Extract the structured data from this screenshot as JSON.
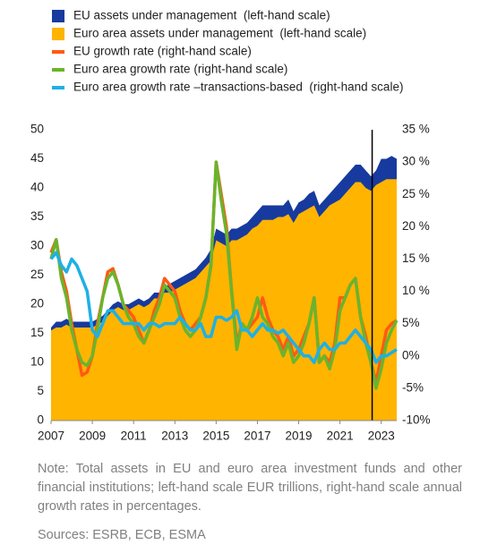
{
  "chart_data": {
    "type": "combo",
    "x": [
      2007,
      2007.25,
      2007.5,
      2007.75,
      2008,
      2008.25,
      2008.5,
      2008.75,
      2009,
      2009.25,
      2009.5,
      2009.75,
      2010,
      2010.25,
      2010.5,
      2010.75,
      2011,
      2011.25,
      2011.5,
      2011.75,
      2012,
      2012.25,
      2012.5,
      2012.75,
      2013,
      2013.25,
      2013.5,
      2013.75,
      2014,
      2014.25,
      2014.5,
      2014.75,
      2015,
      2015.25,
      2015.5,
      2015.75,
      2016,
      2016.25,
      2016.5,
      2016.75,
      2017,
      2017.25,
      2017.5,
      2017.75,
      2018,
      2018.25,
      2018.5,
      2018.75,
      2019,
      2019.25,
      2019.5,
      2019.75,
      2020,
      2020.25,
      2020.5,
      2020.75,
      2021,
      2021.25,
      2021.5,
      2021.75,
      2022,
      2022.25,
      2022.5,
      2022.75,
      2023,
      2023.25,
      2023.5,
      2023.75
    ],
    "series": [
      {
        "name": "EU assets under management  (left-hand scale)",
        "type": "area",
        "color": "#173a9e",
        "values": [
          16,
          17,
          17,
          17.5,
          17,
          17,
          17,
          17,
          17,
          17.5,
          18,
          19,
          20,
          20.5,
          20,
          20,
          20.5,
          21,
          20.5,
          21,
          22,
          22,
          23,
          23.5,
          24,
          24.5,
          25,
          25.5,
          26,
          27,
          28,
          29.5,
          33,
          32.5,
          32,
          33,
          33,
          33.5,
          34,
          35,
          36,
          37,
          37,
          37,
          37,
          37,
          38,
          36,
          37.5,
          38,
          39,
          39.5,
          37,
          38,
          39,
          40,
          41,
          42,
          43,
          44,
          44,
          43,
          42,
          43,
          45,
          45,
          45.5,
          45
        ]
      },
      {
        "name": "Euro area assets under management  (left-hand scale)",
        "type": "area",
        "color": "#ffb400",
        "values": [
          15.5,
          16,
          16,
          16.5,
          16,
          16,
          16,
          16,
          16,
          16.5,
          17,
          18,
          19,
          19.5,
          19,
          19,
          19.5,
          20,
          19.5,
          20,
          21,
          21,
          22,
          22,
          22.5,
          23,
          23.5,
          24,
          24.5,
          25.5,
          26.5,
          27.5,
          31,
          30.5,
          30,
          31,
          31,
          31.5,
          32,
          33,
          33.5,
          34.5,
          34.5,
          34.5,
          35,
          35,
          35.5,
          34,
          35.5,
          36,
          36.5,
          37,
          35,
          36,
          37,
          37.5,
          38,
          39,
          40,
          41,
          41,
          40,
          39.5,
          40.5,
          41,
          41.5,
          41.5,
          41.5
        ]
      },
      {
        "name": "EU growth rate (right-hand scale)",
        "type": "line",
        "axis": "y2",
        "color": "#ff5a14",
        "values": [
          16,
          18,
          13,
          10,
          5,
          1,
          -3,
          -2.5,
          0,
          5,
          9,
          13,
          13.5,
          11,
          8,
          7,
          6,
          4,
          2,
          4,
          7,
          9,
          12,
          11,
          10,
          7,
          5,
          4,
          5,
          6,
          9,
          14,
          30,
          25,
          20,
          10,
          2,
          5,
          4,
          5,
          6,
          9,
          6,
          4,
          3,
          1,
          3,
          0,
          1,
          3,
          5,
          9,
          -1,
          0,
          -1,
          2,
          9,
          9,
          11,
          12,
          6,
          3,
          -1,
          -4,
          0,
          4,
          5,
          5.5
        ]
      },
      {
        "name": "Euro area growth rate (right-hand scale)",
        "type": "line",
        "axis": "y2",
        "color": "#6ab42d",
        "values": [
          15,
          18,
          12,
          9,
          4,
          1,
          -1,
          -1.5,
          0,
          4,
          9,
          12,
          13,
          11,
          8,
          6,
          5,
          3,
          2,
          4,
          6,
          8,
          11,
          10,
          9,
          6,
          4,
          3,
          4,
          6,
          9,
          14,
          30,
          24,
          19,
          10,
          1,
          5,
          4,
          6,
          9,
          6,
          5,
          3,
          2,
          0,
          2,
          -1,
          0,
          2,
          5,
          9,
          -1,
          0,
          -2,
          1,
          7,
          9,
          11,
          12,
          6,
          2,
          -1,
          -5,
          -2,
          2,
          4,
          5.5
        ]
      },
      {
        "name": "Euro area growth rate –transactions-based  (right-hand scale)",
        "type": "line",
        "axis": "y2",
        "color": "#1eb0e6",
        "values": [
          15,
          16,
          14,
          13,
          15,
          14,
          12,
          10,
          4,
          3,
          5,
          7,
          7,
          6,
          5,
          5,
          5,
          5,
          4,
          5,
          5,
          4.5,
          5,
          5,
          5,
          6,
          5,
          4,
          4,
          5,
          3,
          3,
          6,
          6,
          5.5,
          6,
          7,
          4,
          4,
          3,
          4,
          5,
          4,
          4,
          3.5,
          4,
          3,
          2,
          1,
          0,
          0,
          -1,
          1,
          2,
          1,
          1,
          2,
          2,
          3,
          4,
          3,
          2,
          1,
          -1,
          0,
          0,
          0.5,
          1
        ]
      }
    ],
    "xlim": [
      2007,
      2023.75
    ],
    "xticks": [
      2007,
      2009,
      2011,
      2013,
      2015,
      2017,
      2019,
      2021,
      2023
    ],
    "ylim": [
      0,
      50
    ],
    "yticks": [
      0,
      5,
      10,
      15,
      20,
      25,
      30,
      35,
      40,
      45,
      50
    ],
    "y2lim": [
      -10,
      35
    ],
    "y2ticks": [
      {
        "value": -10,
        "label": "-10%"
      },
      {
        "value": -5,
        "label": "-5%"
      },
      {
        "value": 0,
        "label": "0%"
      },
      {
        "value": 5,
        "label": "5%"
      },
      {
        "value": 10,
        "label": "10 %"
      },
      {
        "value": 15,
        "label": "15 %"
      },
      {
        "value": 20,
        "label": "20 %"
      },
      {
        "value": 25,
        "label": "25 %"
      },
      {
        "value": 30,
        "label": "30 %"
      },
      {
        "value": 35,
        "label": "35 %"
      }
    ],
    "vline": 2022.56,
    "note": "Note: Total assets in EU and euro area investment funds and other financial institutions; left-hand scale EUR trillions, right-hand scale annual growth rates in percentages.",
    "sources": "Sources: ESRB, ECB, ESMA"
  }
}
